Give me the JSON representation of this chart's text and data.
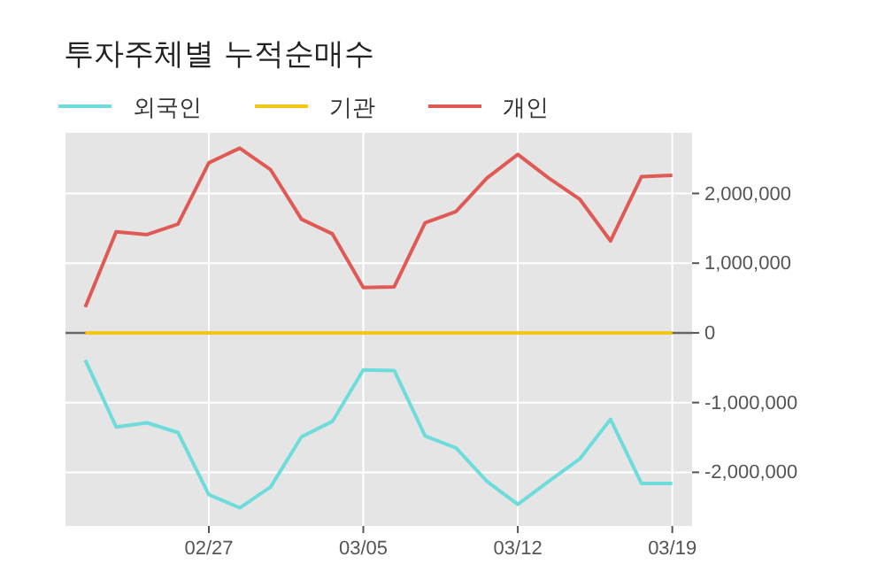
{
  "chart_data": {
    "type": "line",
    "title": "투자주체별 누적순매수",
    "categories": [
      null,
      null,
      null,
      null,
      "02/27",
      null,
      null,
      null,
      null,
      "03/05",
      null,
      null,
      null,
      null,
      "03/12",
      null,
      null,
      null,
      null,
      "03/19"
    ],
    "series": [
      {
        "name": "외국인",
        "color": "#6fdcdc",
        "values": [
          -390000,
          -1350000,
          -1290000,
          -1430000,
          -2320000,
          -2510000,
          -2210000,
          -1490000,
          -1270000,
          -530000,
          -540000,
          -1480000,
          -1650000,
          -2130000,
          -2460000,
          -2130000,
          -1810000,
          -1240000,
          -2160000,
          -2160000
        ]
      },
      {
        "name": "기관",
        "color": "#f5c518",
        "values": [
          0,
          0,
          0,
          0,
          0,
          0,
          0,
          0,
          0,
          0,
          0,
          0,
          0,
          0,
          0,
          0,
          0,
          0,
          0,
          0
        ]
      },
      {
        "name": "개인",
        "color": "#e05a55",
        "values": [
          370000,
          1450000,
          1410000,
          1560000,
          2440000,
          2650000,
          2340000,
          1630000,
          1420000,
          650000,
          660000,
          1580000,
          1740000,
          2220000,
          2560000,
          2220000,
          1920000,
          1320000,
          2240000,
          2260000
        ]
      }
    ],
    "ylim": [
      -2770000,
      2870000
    ],
    "yticks": [
      {
        "value": -2000000,
        "label": "-2,000,000"
      },
      {
        "value": -1000000,
        "label": "-1,000,000"
      },
      0,
      {
        "value": 1000000,
        "label": "1,000,000"
      },
      {
        "value": 2000000,
        "label": "2,000,000"
      }
    ],
    "ref_lines": [
      {
        "axis": "y",
        "value": 0,
        "color": "#666666"
      }
    ],
    "grid": true,
    "legend": "top left",
    "marker": "none",
    "line_style": "solid"
  }
}
